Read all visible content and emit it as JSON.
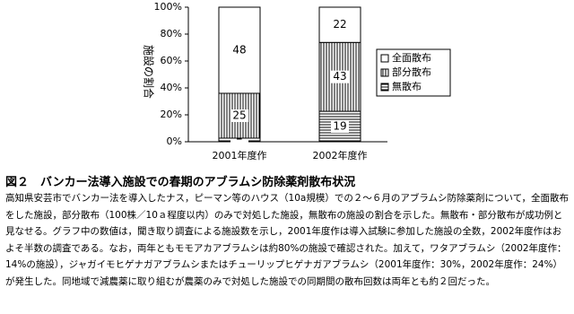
{
  "chart_data": {
    "type": "bar",
    "stacked": true,
    "percent_of_total": true,
    "y_label": "施設の割合",
    "categories": [
      "2001年度作",
      "2002年度作"
    ],
    "series": [
      {
        "name": "無散布",
        "pattern": "hlines",
        "values": [
          2,
          19
        ]
      },
      {
        "name": "部分散布",
        "pattern": "vlines",
        "values": [
          25,
          43
        ]
      },
      {
        "name": "全面散布",
        "pattern": "none",
        "values": [
          48,
          22
        ]
      }
    ],
    "ylim": [
      0,
      100
    ],
    "yticks": [
      {
        "value": 0,
        "label": "0%"
      },
      {
        "value": 20,
        "label": "20%"
      },
      {
        "value": 40,
        "label": "40%"
      },
      {
        "value": 60,
        "label": "60%"
      },
      {
        "value": 80,
        "label": "80%"
      },
      {
        "value": 100,
        "label": "100%"
      }
    ],
    "legend": "right"
  },
  "caption": {
    "title": "図２　バンカー法導入施設での春期のアブラムシ防除薬剤散布状況",
    "text": "高知県安芸市でバンカー法を導入したナス，ピーマン等のハウス（10a規模）での２～６月のアブラムシ防除薬剤について，全面散布をした施設，部分散布（100株／10ａ程度以内）のみで対処した施設，無散布の施設の割合を示した。無散布・部分散布が成功例と見なせる。グラフ中の数値は，聞き取り調査による施設数を示し，2001年度作は導入試験に参加した施設の全数，2002年度作はおよそ半数の調査である。なお，両年ともモモアカアブラムシは約80%の施設で確認された。加えて，ワタアブラムシ（2002年度作：14%の施設），ジャガイモヒゲナガアブラムシまたはチューリップヒゲナガアブラムシ（2001年度作：30%，2002年度作：24%）が発生した。同地域で減農薬に取り組むが農薬のみで対処した施設での同期間の散布回数は両年とも約２回だった。"
  }
}
